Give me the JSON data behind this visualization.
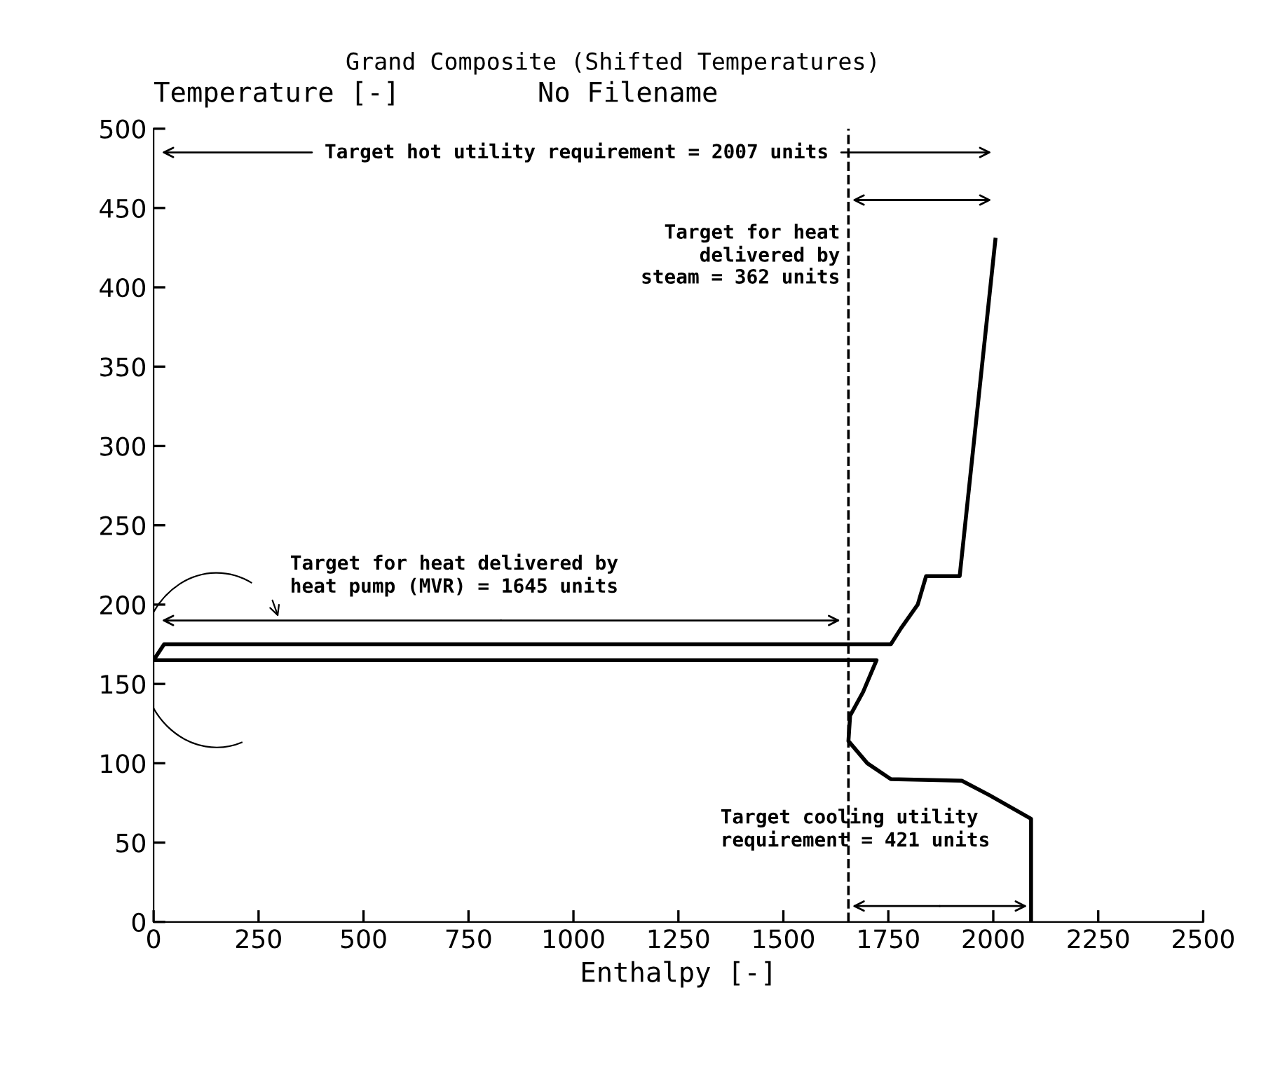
{
  "chart_data": {
    "type": "line",
    "title": "Grand Composite (Shifted Temperatures)",
    "ylabel": "Temperature [-]",
    "xlabel": "Enthalpy [-]",
    "annotations": [
      "No Filename",
      "Target hot utility requirement = 2007 units",
      {
        "text": "Target for heat\ndelivered by\nsteam = 362 units",
        "x": 1650,
        "y": 455
      },
      "Target for heat delivered by\nheat pump (MVR) = 1645 units",
      {
        "text": "Target cooling utility\nrequirement = 421 units",
        "x": 1650,
        "y": 10
      }
    ],
    "series": [
      {
        "color": "#000000",
        "x": [
          2005,
          1920,
          1840,
          1820,
          1780,
          1756,
          25,
          0,
          1722,
          1690,
          1659,
          1655,
          1700,
          1756,
          1925,
          1990,
          2090,
          2090
        ],
        "values": [
          430,
          218,
          218,
          200,
          185,
          175,
          175,
          165,
          165,
          145,
          130,
          114,
          100,
          90,
          89,
          80,
          65,
          0
        ]
      }
    ],
    "ref_lines": [
      {
        "axis": "x",
        "value": 1655,
        "color": "#000000",
        "line_style": "dashed"
      }
    ],
    "xlim": [
      0,
      2500
    ],
    "ylim": [
      0,
      500
    ],
    "xticks": [
      0,
      250,
      500,
      750,
      1000,
      1250,
      1500,
      1750,
      2000,
      2250,
      2500
    ],
    "yticks": [
      0,
      50,
      100,
      150,
      200,
      250,
      300,
      350,
      400,
      450,
      500
    ],
    "grid": false,
    "legend": false,
    "marker": "none",
    "line_style": "solid"
  }
}
